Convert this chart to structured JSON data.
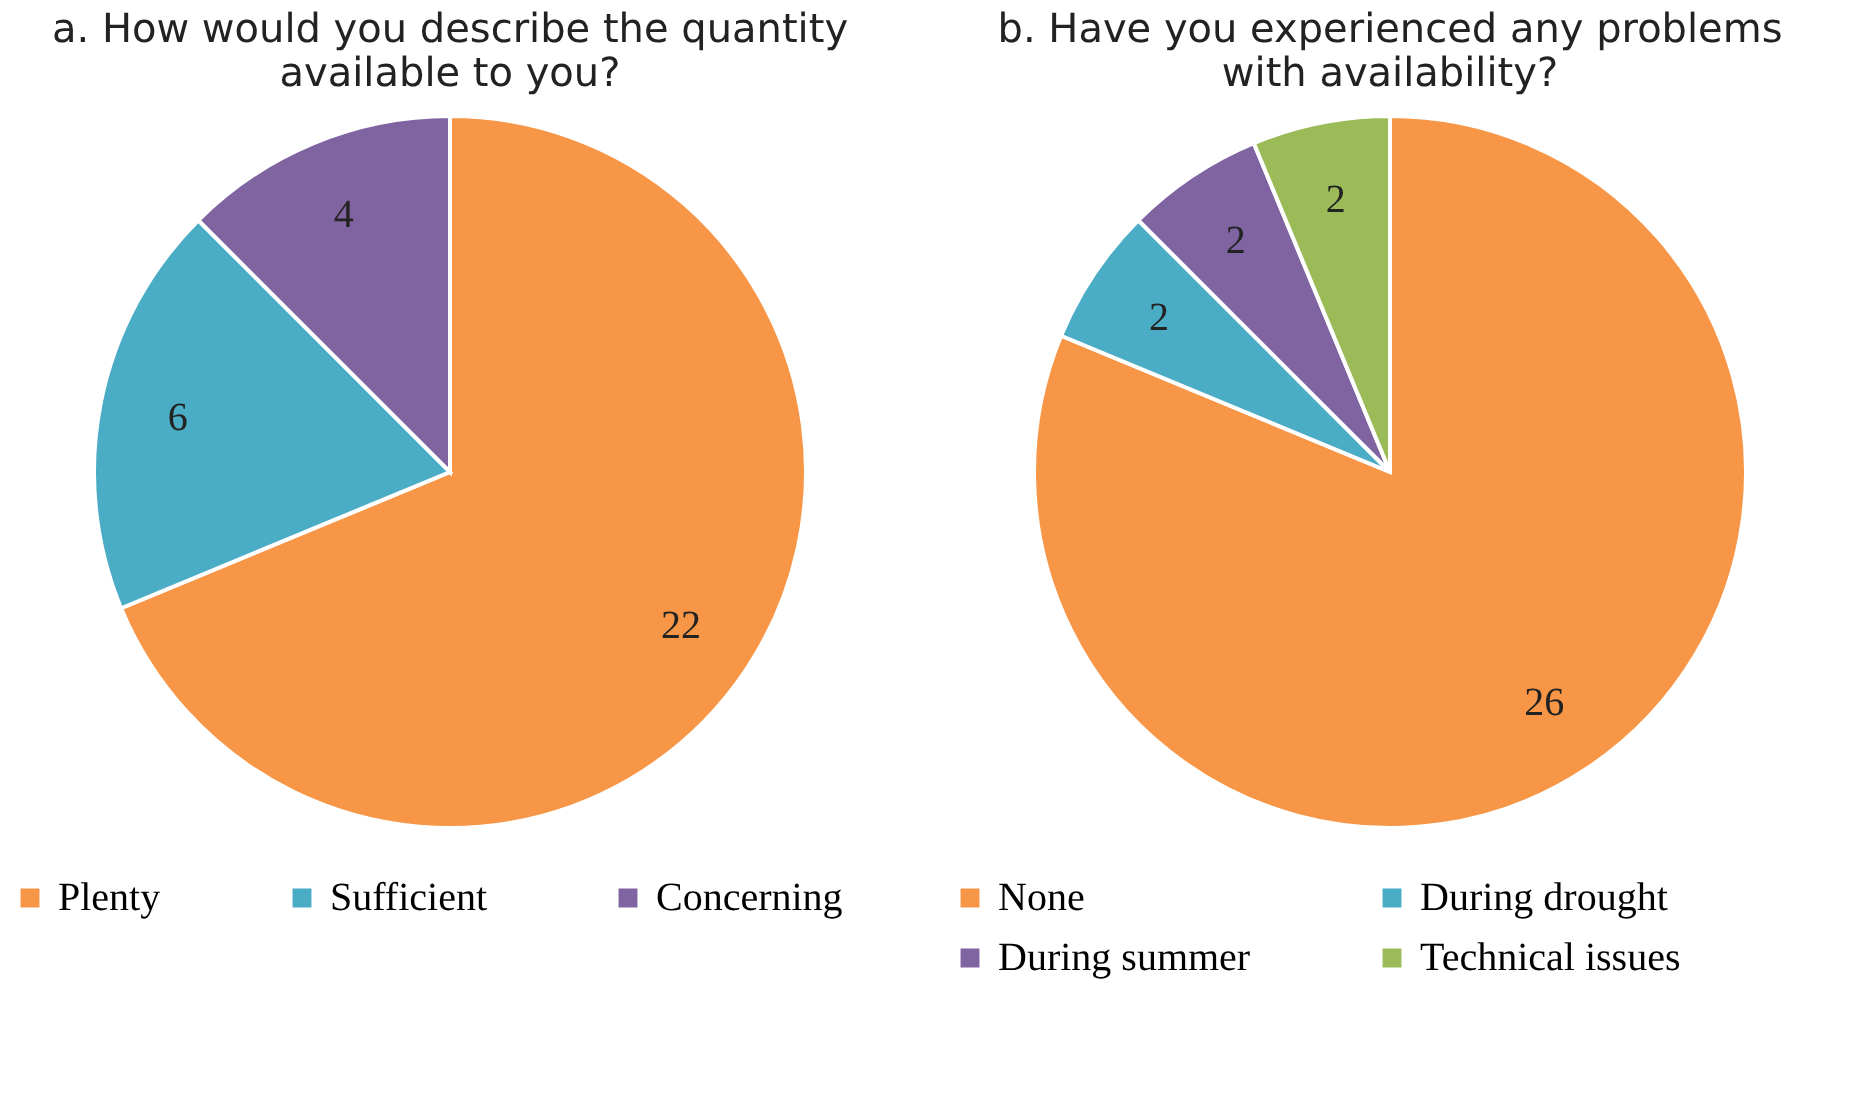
{
  "chart_data": [
    {
      "type": "pie",
      "title": "a. How would you describe the quantity available to you?",
      "categories": [
        "Plenty",
        "Sufficient",
        "Concerning"
      ],
      "values": [
        22,
        6,
        4
      ],
      "colors": [
        "#f79646",
        "#4bacc6",
        "#8064a2"
      ],
      "data_labels": true,
      "legend": "bottom"
    },
    {
      "type": "pie",
      "title": "b. Have you experienced any problems with availability?",
      "categories": [
        "None",
        "During drought",
        "During summer",
        "Technical issues"
      ],
      "values": [
        26,
        2,
        2,
        2
      ],
      "colors": [
        "#f79646",
        "#4bacc6",
        "#8064a2",
        "#9bbb59"
      ],
      "data_labels": true,
      "legend": "bottom"
    }
  ]
}
